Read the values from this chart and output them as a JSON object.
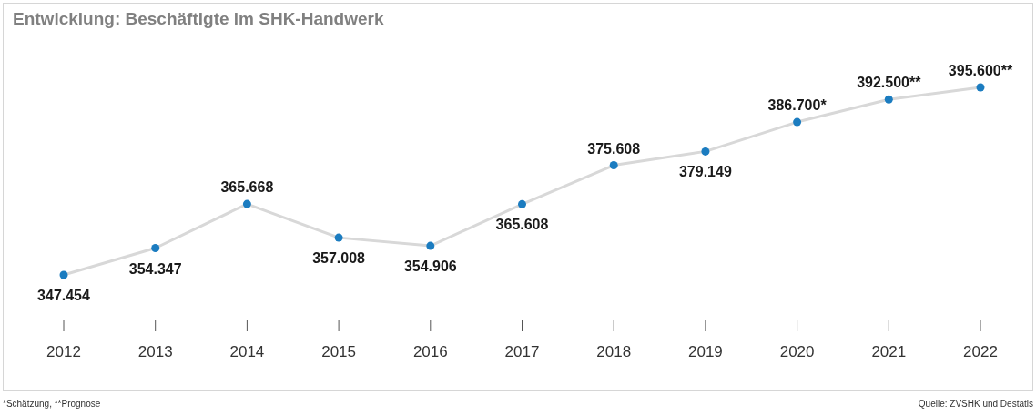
{
  "chart_data": {
    "type": "line",
    "title": "Entwicklung: Beschäftigte im SHK-Handwerk",
    "categories": [
      "2012",
      "2013",
      "2014",
      "2015",
      "2016",
      "2017",
      "2018",
      "2019",
      "2020",
      "2021",
      "2022"
    ],
    "series": [
      {
        "color": "#1b7cc0",
        "values": [
          347454,
          354347,
          365668,
          357008,
          354906,
          365608,
          375608,
          379149,
          386700,
          392500,
          395600
        ],
        "value_labels": [
          "347.454",
          "354.347",
          "365.668",
          "357.008",
          "354.906",
          "365.608",
          "375.608",
          "379.149",
          "386.700*",
          "392.500**",
          "395.600**"
        ]
      }
    ],
    "marker": "circle",
    "line_style": "solid",
    "grid": false,
    "legend": false,
    "annotations": [
      "*Schätzung, **Prognose",
      "Quelle: ZVSHK und Destatis"
    ]
  }
}
